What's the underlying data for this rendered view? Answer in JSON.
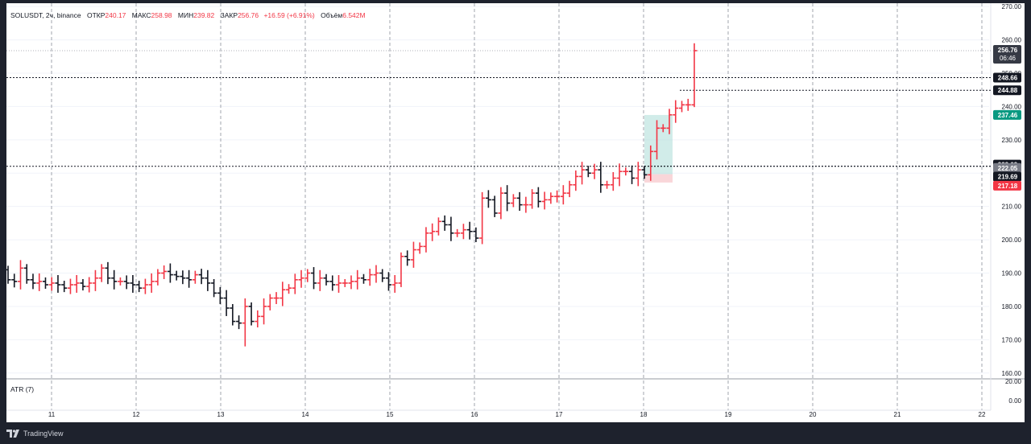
{
  "legend": {
    "symbol": "SOLUSDT, 2ч, binance",
    "open_label": "ОТКР",
    "open_value": "240.17",
    "high_label": "МАКС",
    "high_value": "258.98",
    "low_label": "МИН",
    "low_value": "239.82",
    "close_label": "ЗАКР",
    "close_value": "256.76",
    "change": "+16.59 (+6.91%)",
    "volume_label": "Объём",
    "volume_value": "6.542M"
  },
  "atr_label": "ATR (7)",
  "footer": {
    "brand": "TradingView"
  },
  "colors": {
    "up": "#f23645",
    "down": "#131722",
    "grid": "#8a8e99",
    "profit": "#b2dfdb",
    "loss": "#f7c5c9",
    "bg": "#1e222d"
  },
  "chart_data": {
    "type": "ohlc",
    "symbol": "SOLUSDT",
    "timeframe": "2ч",
    "exchange": "binance",
    "x_ticks": [
      "11",
      "12",
      "13",
      "14",
      "15",
      "16",
      "17",
      "18",
      "19",
      "20",
      "21",
      "22"
    ],
    "y_ticks": [
      "160.00",
      "170.00",
      "180.00",
      "190.00",
      "200.00",
      "210.00",
      "220.00",
      "230.00",
      "240.00",
      "250.00",
      "260.00",
      "270.00"
    ],
    "ylim": [
      158.5,
      271
    ],
    "atr_ticks": [
      "0.00",
      "20.00"
    ],
    "close_path": [
      188,
      187.5,
      191.5,
      188,
      187,
      187.5,
      186.5,
      187,
      186.5,
      185.5,
      186.5,
      187,
      186,
      187,
      188.5,
      191.5,
      188.5,
      187.5,
      187.5,
      187,
      186.5,
      185.5,
      186.5,
      187.5,
      190,
      190.5,
      189.5,
      189,
      188.5,
      188,
      189.5,
      188.5,
      187,
      184,
      182.5,
      179.5,
      175.5,
      175,
      180,
      175.5,
      177,
      180,
      182.5,
      182.5,
      185,
      185.5,
      188,
      188.5,
      190,
      187,
      188.5,
      187.5,
      186.5,
      187,
      187,
      187.5,
      188.5,
      188,
      189.5,
      190,
      188.5,
      186.5,
      187,
      195,
      194,
      197,
      198,
      202,
      202.5,
      205.5,
      204.5,
      202,
      202,
      203,
      202.5,
      200.5,
      212.5,
      212,
      208,
      214,
      211,
      212.5,
      210.5,
      210.5,
      214,
      211.5,
      212,
      213,
      213,
      214,
      216.5,
      219,
      221,
      220,
      221,
      216.5,
      216.5,
      218.5,
      220.5,
      220.5,
      218.5,
      221,
      219.5,
      226.5,
      233.5,
      233.5,
      237.5,
      239.5,
      240.5,
      240.5,
      256.76
    ],
    "annotations": {
      "current_price": "256.76",
      "countdown": "06:46",
      "dotted_levels": [
        "248.66",
        "244.88",
        "222.09",
        "222.05"
      ],
      "position": {
        "target": "237.46",
        "entry": "219.69",
        "stop": "217.18"
      }
    }
  }
}
